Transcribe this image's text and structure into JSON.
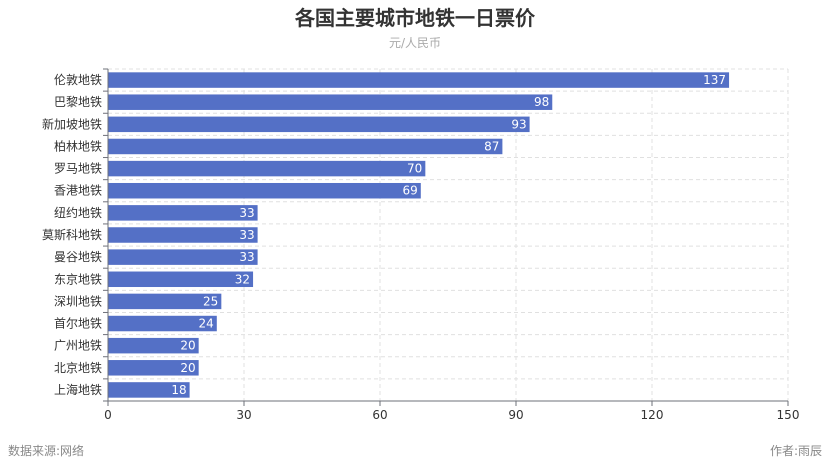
{
  "chart_data": {
    "type": "bar",
    "orientation": "horizontal",
    "title": "各国主要城市地铁一日票价",
    "subtitle": "元/人民币",
    "categories": [
      "伦敦地铁",
      "巴黎地铁",
      "新加坡地铁",
      "柏林地铁",
      "罗马地铁",
      "香港地铁",
      "纽约地铁",
      "莫斯科地铁",
      "曼谷地铁",
      "东京地铁",
      "深圳地铁",
      "首尔地铁",
      "广州地铁",
      "北京地铁",
      "上海地铁"
    ],
    "values": [
      137,
      98,
      93,
      87,
      70,
      69,
      33,
      33,
      33,
      32,
      25,
      24,
      20,
      20,
      18
    ],
    "xlim": [
      0,
      150
    ],
    "xticks": [
      0,
      30,
      60,
      90,
      120,
      150
    ],
    "grid": true,
    "bar_color": "#5470c6",
    "data_labels": true
  },
  "footer": {
    "source": "数据来源:网络",
    "author": "作者:雨辰"
  }
}
